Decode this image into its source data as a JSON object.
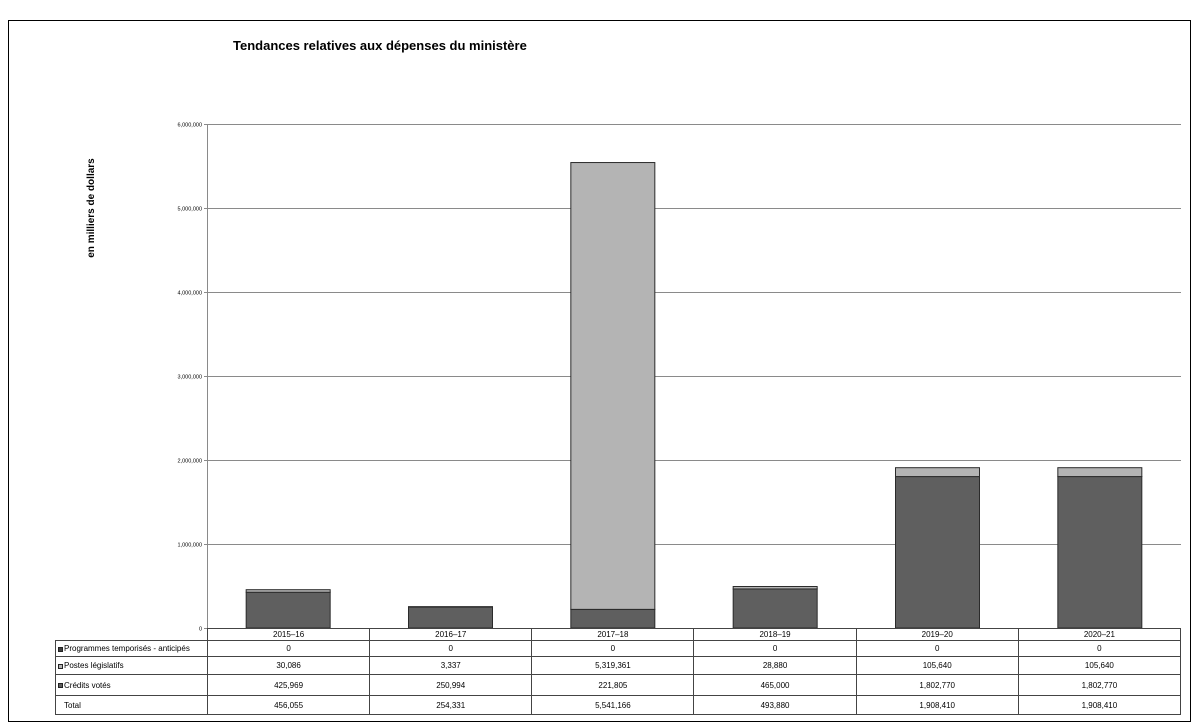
{
  "chart_data": {
    "type": "bar",
    "stacked": true,
    "title": "Tendances relatives aux dépenses du ministère",
    "xlabel": "",
    "ylabel": "en milliers de dollars",
    "ylim": [
      0,
      6000000
    ],
    "yticks": [
      0,
      1000000,
      2000000,
      3000000,
      4000000,
      5000000,
      6000000
    ],
    "grid": true,
    "legend": "data table below chart",
    "categories": [
      "2015–16",
      "2016–17",
      "2017–18",
      "2018–19",
      "2019–20",
      "2020–21"
    ],
    "series": [
      {
        "name": "Programmes temporisés - anticipés",
        "color": "#404040",
        "values": [
          0,
          0,
          0,
          0,
          0,
          0
        ]
      },
      {
        "name": "Postes législatifs",
        "color": "#b4b4b4",
        "values": [
          30086,
          3337,
          5319361,
          28880,
          105640,
          105640
        ]
      },
      {
        "name": "Crédits votés",
        "color": "#5f5f5f",
        "values": [
          425969,
          250994,
          221805,
          465000,
          1802770,
          1802770
        ]
      }
    ],
    "total": {
      "name": "Total",
      "values": [
        456055,
        254331,
        5541166,
        493880,
        1908410,
        1908410
      ]
    }
  }
}
